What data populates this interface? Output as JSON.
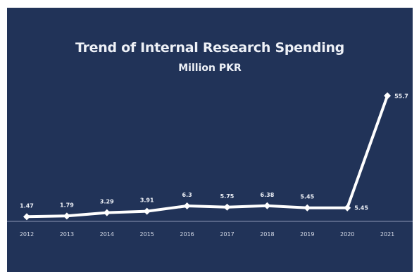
{
  "chart_data": {
    "type": "line",
    "title": "Trend of Internal Research Spending",
    "subtitle": "Million PKR",
    "xlabel": "",
    "ylabel": "",
    "categories": [
      "2012",
      "2013",
      "2014",
      "2015",
      "2016",
      "2017",
      "2018",
      "2019",
      "2020",
      "2021"
    ],
    "series": [
      {
        "values": [
          1.47,
          1.79,
          3.29,
          3.91,
          6.3,
          5.75,
          6.38,
          5.45,
          5.45,
          55.7
        ],
        "labels": [
          "1.47",
          "1.79",
          "3.29",
          "3.91",
          "6.3",
          "5.75",
          "6.38",
          "5.45",
          "5.45",
          "55.7"
        ]
      }
    ],
    "ylim": [
      0,
      58
    ],
    "grid": false,
    "legend": "none",
    "colors": {
      "background": "#213358",
      "line": "#ffffff",
      "axis": "#8a96b3",
      "text": "#eef1f7"
    }
  }
}
